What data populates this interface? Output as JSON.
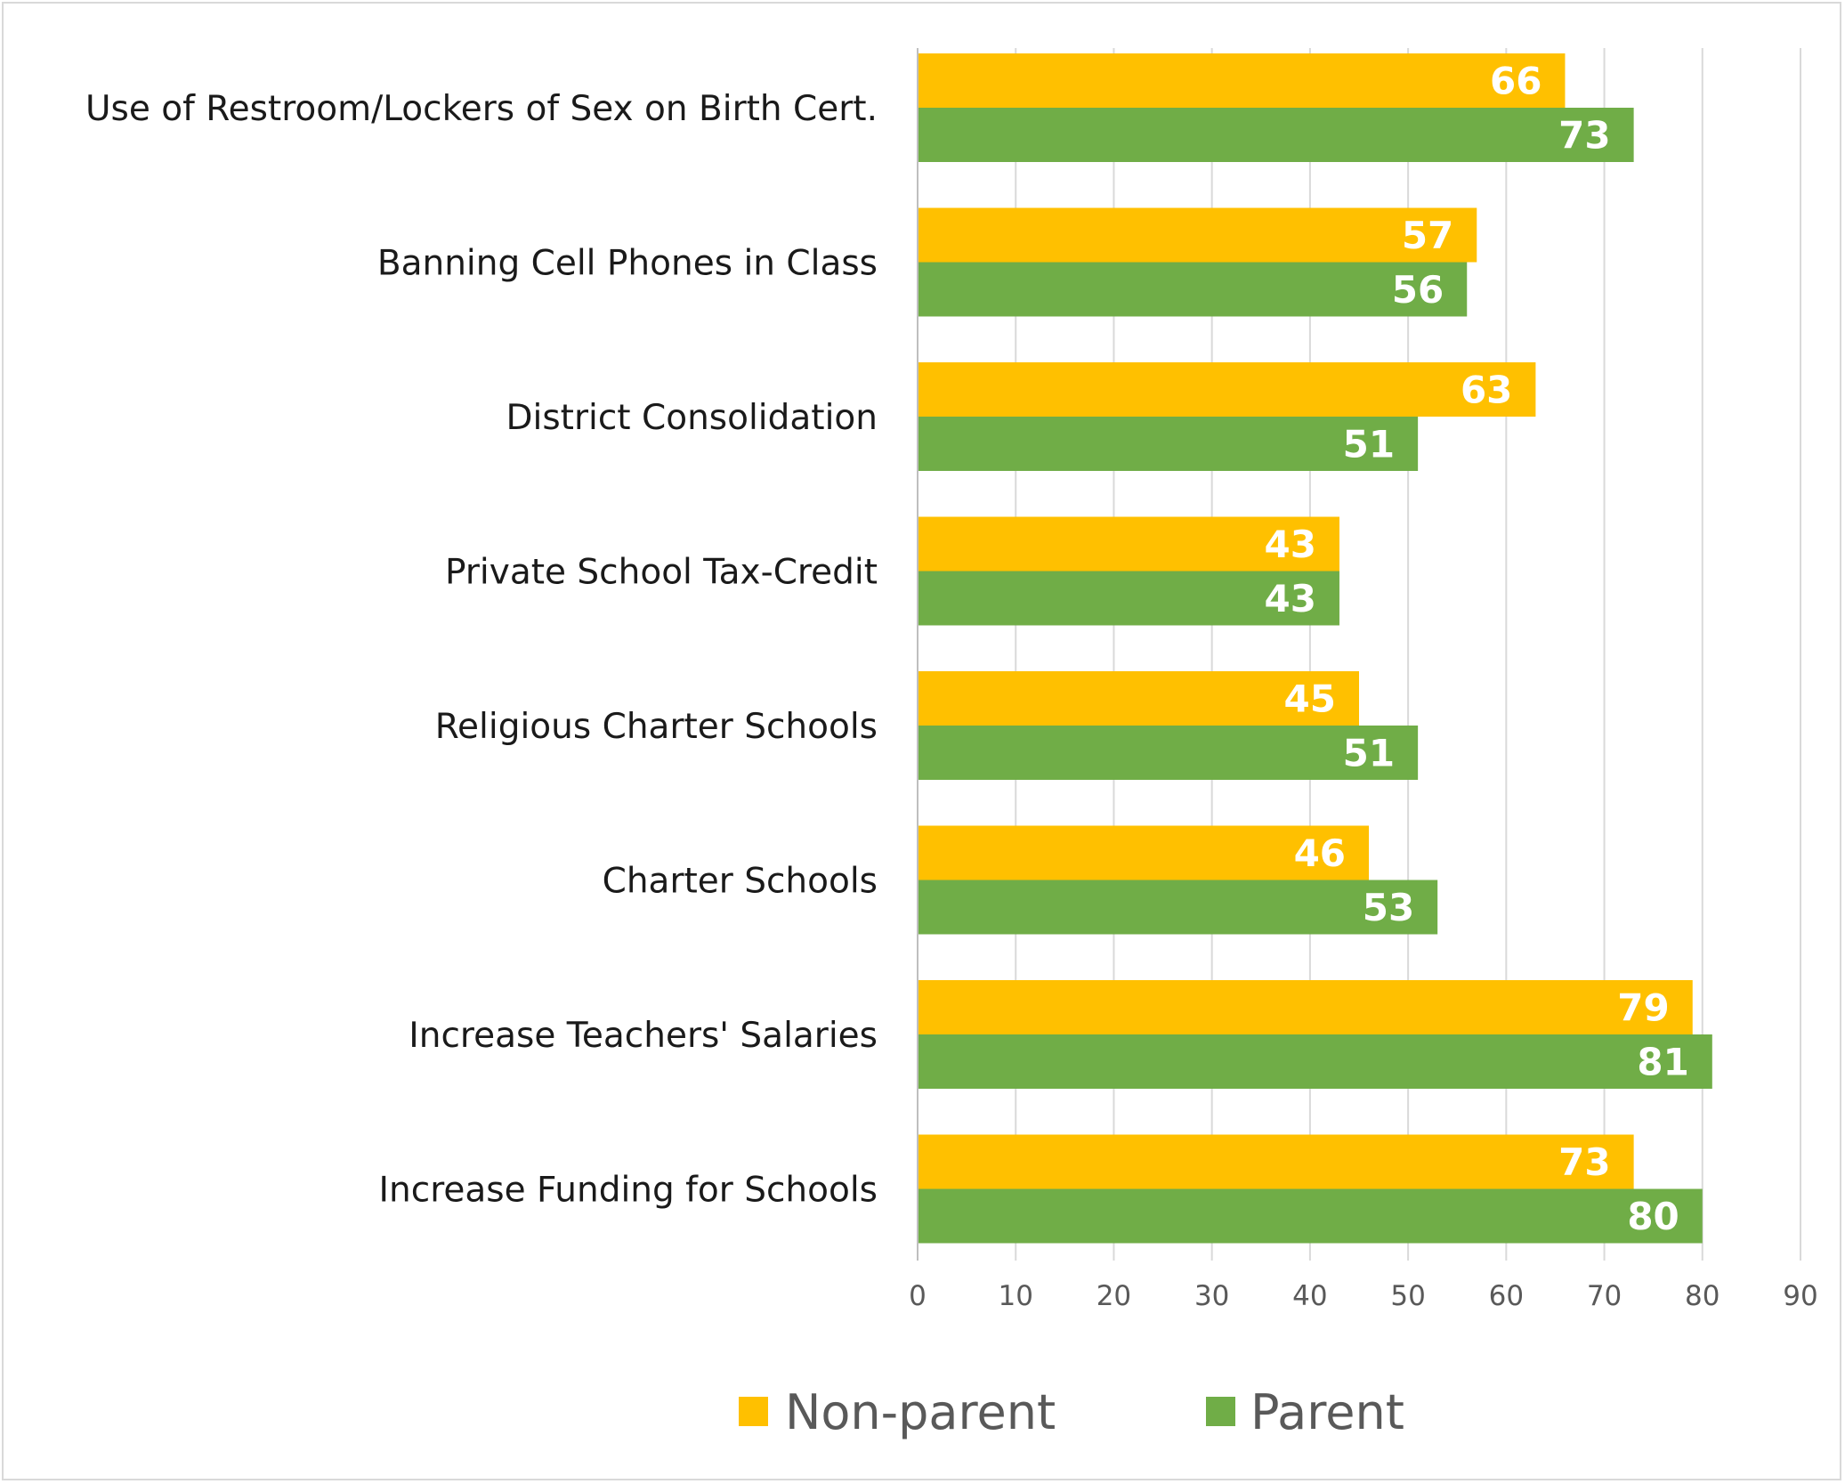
{
  "chart_data": {
    "type": "bar",
    "orientation": "horizontal",
    "categories": [
      "Use of Restroom/Lockers of Sex on Birth Cert.",
      "Banning Cell Phones in Class",
      "District Consolidation",
      "Private School Tax-Credit",
      "Religious Charter Schools",
      "Charter Schools",
      "Increase Teachers' Salaries",
      "Increase Funding for Schools"
    ],
    "series": [
      {
        "name": "Non-parent",
        "color": "#ffc000",
        "values": [
          66,
          57,
          63,
          43,
          45,
          46,
          79,
          73
        ]
      },
      {
        "name": "Parent",
        "color": "#70ad47",
        "values": [
          73,
          56,
          51,
          43,
          51,
          53,
          81,
          80
        ]
      }
    ],
    "xlim": [
      0,
      90
    ],
    "xticks": [
      "0",
      "10",
      "20",
      "30",
      "40",
      "50",
      "60",
      "70",
      "80",
      "90"
    ],
    "title": "",
    "xlabel": "",
    "ylabel": "",
    "grid": true,
    "legend_position": "bottom",
    "gridline_color": "#d9d9d9",
    "axis_color": "#bfbfbf"
  }
}
